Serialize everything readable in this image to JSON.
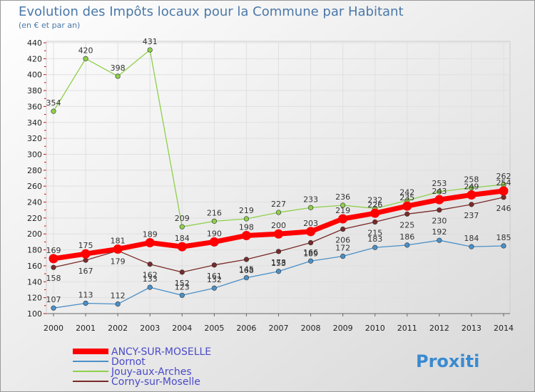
{
  "chart_data": {
    "type": "line",
    "title": "Evolution des Impôts locaux pour la Commune par Habitant",
    "subtitle": "(en € et par an)",
    "xlabel": "",
    "ylabel": "",
    "categories": [
      "2000",
      "2001",
      "2002",
      "2003",
      "2004",
      "2005",
      "2006",
      "2007",
      "2008",
      "2009",
      "2010",
      "2011",
      "2012",
      "2013",
      "2014"
    ],
    "ylim": [
      100,
      440
    ],
    "yticks": [
      100,
      120,
      140,
      160,
      180,
      200,
      220,
      240,
      260,
      280,
      300,
      320,
      340,
      360,
      380,
      400,
      420,
      440
    ],
    "grid": true,
    "legend_position": "bottom-left",
    "series": [
      {
        "name": "ANCY-SUR-MOSELLE",
        "color": "#ff0000",
        "values": [
          169,
          175,
          181,
          189,
          184,
          190,
          198,
          200,
          203,
          219,
          226,
          235,
          243,
          249,
          254
        ]
      },
      {
        "name": "Dornot",
        "color": "#4a90c8",
        "values": [
          107,
          113,
          112,
          133,
          123,
          132,
          145,
          153,
          166,
          172,
          183,
          186,
          192,
          184,
          185
        ]
      },
      {
        "name": "Jouy-aux-Arches",
        "color": "#8ed04a",
        "values": [
          354,
          420,
          398,
          431,
          209,
          216,
          219,
          227,
          233,
          236,
          232,
          242,
          253,
          258,
          262
        ]
      },
      {
        "name": "Corny-sur-Moselle",
        "color": "#7a2a2a",
        "values": [
          158,
          167,
          179,
          162,
          152,
          161,
          168,
          178,
          189,
          206,
          215,
          225,
          230,
          237,
          246
        ]
      }
    ]
  },
  "logo": {
    "text": "Proxiti"
  }
}
